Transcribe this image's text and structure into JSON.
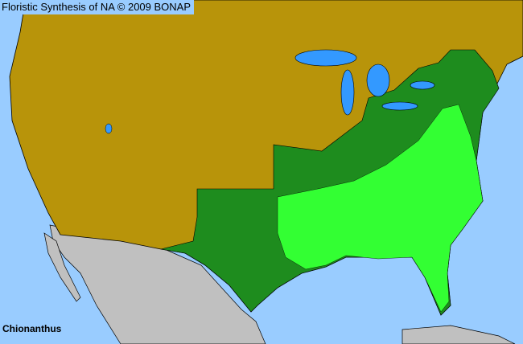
{
  "header": {
    "title": "Floristic Synthesis of NA © 2009 BONAP"
  },
  "map": {
    "taxon": "Chionanthus",
    "colors": {
      "ocean": "#99ccff",
      "absent": "#b8940a",
      "present_state": "#1e8c1e",
      "present_county": "#33ff33",
      "outside_region": "#c0c0c0",
      "lakes": "#3399ff",
      "borders": "#000000"
    }
  }
}
